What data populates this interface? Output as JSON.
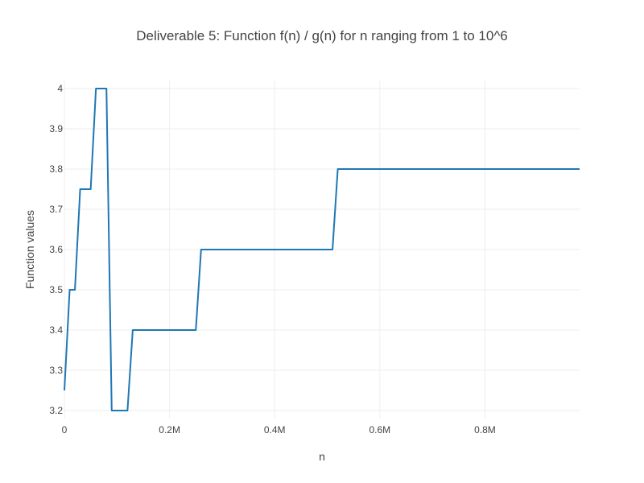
{
  "chart_data": {
    "type": "line",
    "title": "Deliverable 5: Function f(n) / g(n) for n ranging from 1 to 10^6",
    "xlabel": "n",
    "ylabel": "Function values",
    "xlim": [
      0,
      980000
    ],
    "ylim": [
      3.18,
      4.02
    ],
    "x_ticks": [
      0,
      200000,
      400000,
      600000,
      800000
    ],
    "x_tick_labels": [
      "0",
      "0.2M",
      "0.4M",
      "0.6M",
      "0.8M"
    ],
    "y_ticks": [
      3.2,
      3.3,
      3.4,
      3.5,
      3.6,
      3.7,
      3.8,
      3.9,
      4.0
    ],
    "y_tick_labels": [
      "3.2",
      "3.3",
      "3.4",
      "3.5",
      "3.6",
      "3.7",
      "3.8",
      "3.9",
      "4"
    ],
    "grid": true,
    "legend": false,
    "series": [
      {
        "color": "#1f77b4",
        "x": [
          1,
          10000,
          20000,
          30000,
          50000,
          60000,
          80000,
          90000,
          120000,
          130000,
          250000,
          260000,
          510000,
          520000,
          980000
        ],
        "y": [
          3.25,
          3.5,
          3.5,
          3.75,
          3.75,
          4.0,
          4.0,
          3.2,
          3.2,
          3.4,
          3.4,
          3.6,
          3.6,
          3.8,
          3.8
        ]
      }
    ]
  }
}
